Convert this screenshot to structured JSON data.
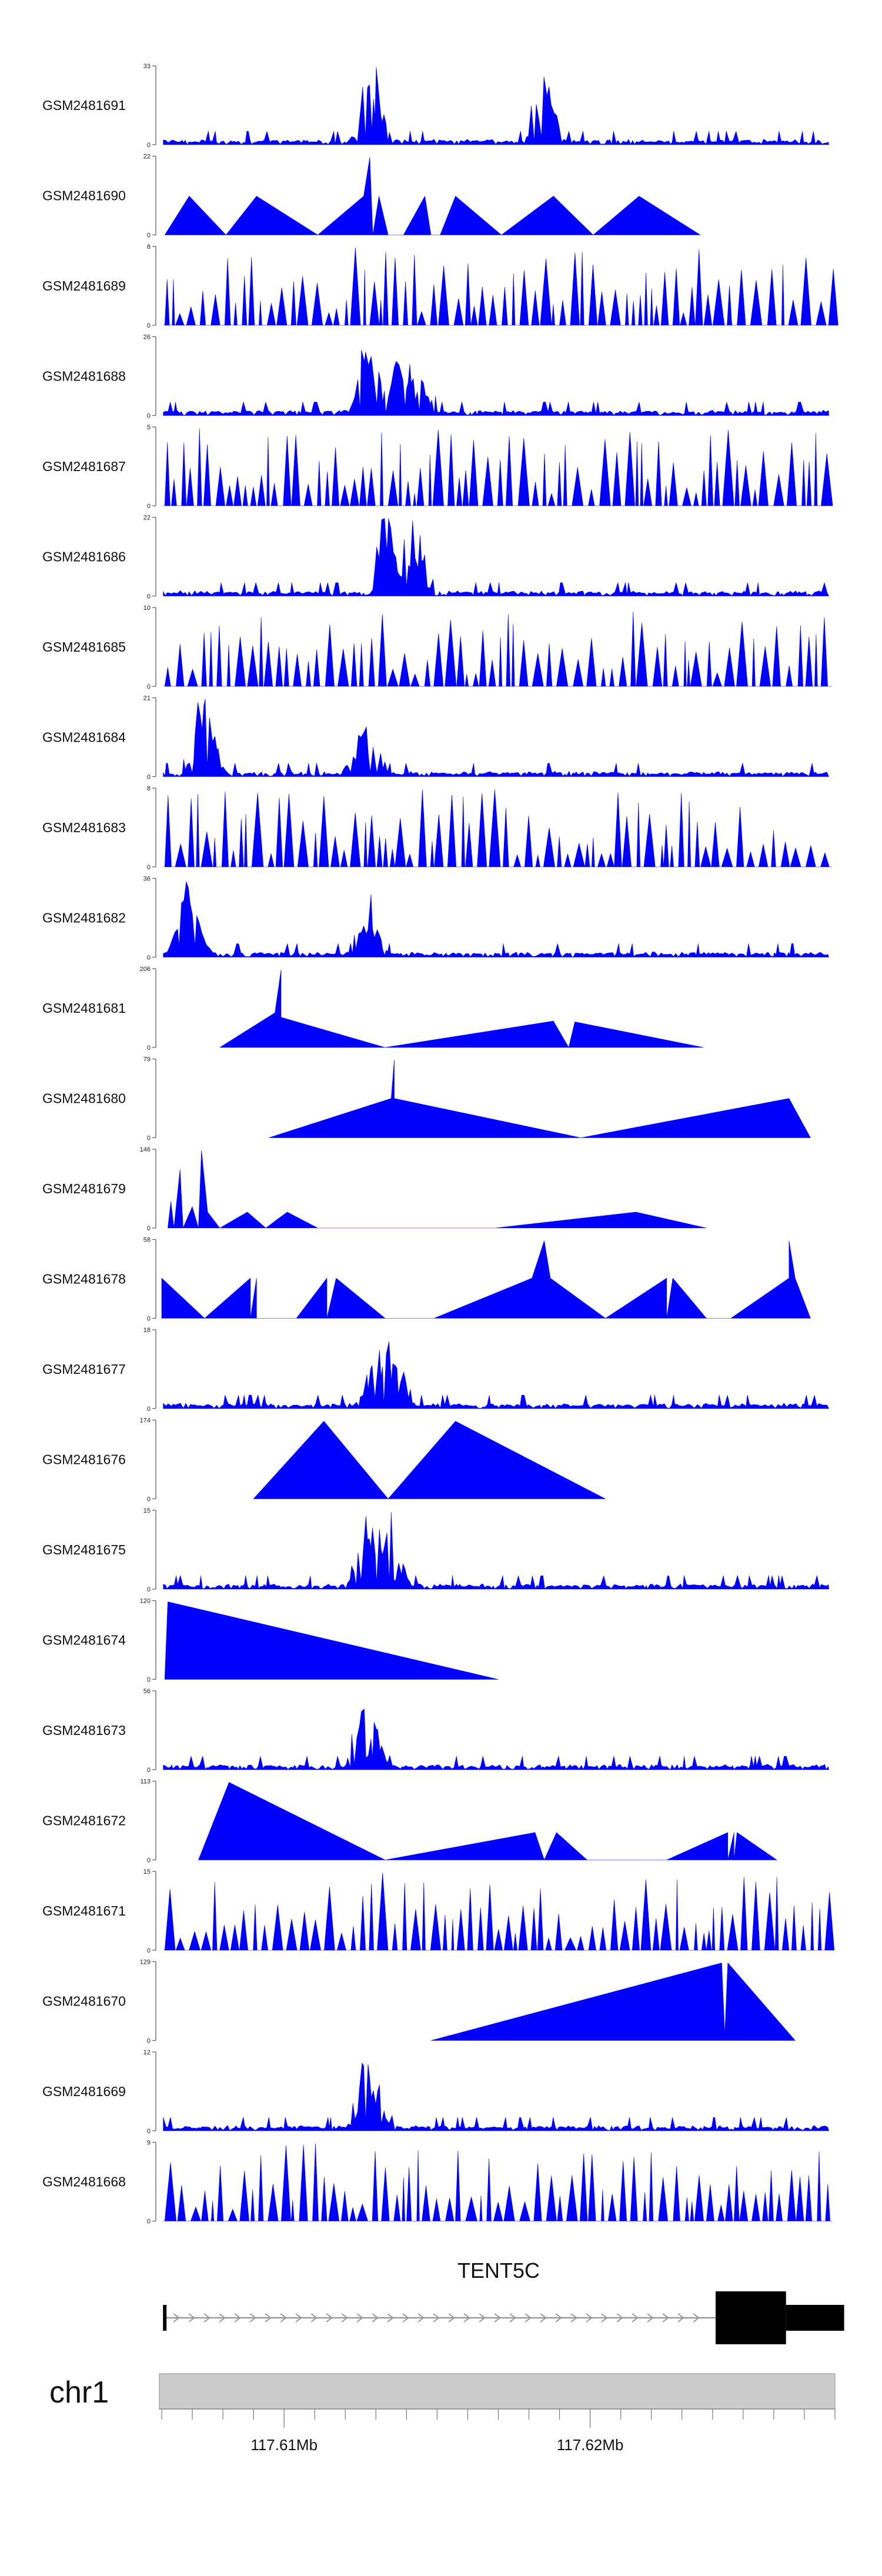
{
  "chart_data": {
    "type": "area",
    "title": "",
    "region": {
      "chrom": "chr1",
      "start": 117.606,
      "end": 117.628,
      "unit": "Mb"
    },
    "x_ticks": [
      {
        "value": 117.61,
        "label": "117.61Mb"
      },
      {
        "value": 117.62,
        "label": "117.62Mb"
      }
    ],
    "color": "#0000ff",
    "tracks": [
      {
        "name": "GSM2481691",
        "ymax": 33,
        "ymin": 0,
        "style": "dense",
        "peaks": [
          [
            117.6129,
            33
          ],
          [
            117.6185,
            29
          ]
        ]
      },
      {
        "name": "GSM2481690",
        "ymax": 22,
        "ymin": 0,
        "style": "sparse",
        "points": [
          [
            117.6061,
            0
          ],
          [
            117.6069,
            11
          ],
          [
            117.6081,
            0
          ],
          [
            117.6091,
            11
          ],
          [
            117.6111,
            0
          ],
          [
            117.6126,
            11
          ],
          [
            117.6128,
            22
          ],
          [
            117.6129,
            0
          ],
          [
            117.6131,
            11
          ],
          [
            117.6134,
            0
          ],
          [
            117.6139,
            0
          ],
          [
            117.6146,
            11
          ],
          [
            117.6148,
            0
          ],
          [
            117.6151,
            0
          ],
          [
            117.6156,
            11
          ],
          [
            117.6171,
            0
          ],
          [
            117.6188,
            11
          ],
          [
            117.6201,
            0
          ],
          [
            117.6216,
            11
          ],
          [
            117.6236,
            0
          ]
        ]
      },
      {
        "name": "GSM2481689",
        "ymax": 8,
        "ymin": 0,
        "style": "spiky"
      },
      {
        "name": "GSM2481688",
        "ymax": 26,
        "ymin": 0,
        "style": "dense",
        "peaks": [
          [
            117.6128,
            26
          ],
          [
            117.6138,
            22
          ],
          [
            117.6144,
            14
          ]
        ]
      },
      {
        "name": "GSM2481687",
        "ymax": 5,
        "ymin": 0,
        "style": "spiky"
      },
      {
        "name": "GSM2481686",
        "ymax": 22,
        "ymin": 0,
        "style": "dense",
        "peaks": [
          [
            117.6134,
            22
          ],
          [
            117.6142,
            18
          ]
        ]
      },
      {
        "name": "GSM2481685",
        "ymax": 10,
        "ymin": 0,
        "style": "spiky"
      },
      {
        "name": "GSM2481684",
        "ymax": 21,
        "ymin": 0,
        "style": "dense",
        "peaks": [
          [
            117.6074,
            21
          ],
          [
            117.6126,
            16
          ]
        ]
      },
      {
        "name": "GSM2481683",
        "ymax": 8,
        "ymin": 0,
        "style": "spiky"
      },
      {
        "name": "GSM2481682",
        "ymax": 36,
        "ymin": 0,
        "style": "dense",
        "peaks": [
          [
            117.6069,
            36
          ],
          [
            117.6127,
            25
          ]
        ]
      },
      {
        "name": "GSM2481681",
        "ymax": 206,
        "ymin": 0,
        "style": "sparse",
        "points": [
          [
            117.6079,
            0
          ],
          [
            117.6097,
            92
          ],
          [
            117.6099,
            206
          ],
          [
            117.6099,
            80
          ],
          [
            117.6133,
            0
          ],
          [
            117.6188,
            70
          ],
          [
            117.6193,
            0
          ],
          [
            117.6195,
            68
          ],
          [
            117.6237,
            0
          ]
        ]
      },
      {
        "name": "GSM2481680",
        "ymax": 79,
        "ymin": 0,
        "style": "sparse",
        "points": [
          [
            117.6095,
            0
          ],
          [
            117.6135,
            40
          ],
          [
            117.6136,
            79
          ],
          [
            117.6136,
            40
          ],
          [
            117.6197,
            0
          ],
          [
            117.6265,
            40
          ],
          [
            117.6272,
            0
          ]
        ]
      },
      {
        "name": "GSM2481679",
        "ymax": 146,
        "ymin": 0,
        "style": "sparse",
        "points": [
          [
            117.6062,
            0
          ],
          [
            117.6063,
            50
          ],
          [
            117.6064,
            0
          ],
          [
            117.6066,
            110
          ],
          [
            117.6067,
            0
          ],
          [
            117.607,
            40
          ],
          [
            117.6072,
            0
          ],
          [
            117.6073,
            146
          ],
          [
            117.6075,
            30
          ],
          [
            117.6079,
            0
          ],
          [
            117.6088,
            30
          ],
          [
            117.6094,
            0
          ],
          [
            117.6101,
            30
          ],
          [
            117.6111,
            0
          ],
          [
            117.6169,
            0
          ],
          [
            117.6215,
            30
          ],
          [
            117.6238,
            0
          ]
        ]
      },
      {
        "name": "GSM2481678",
        "ymax": 58,
        "ymin": 0,
        "style": "sparse",
        "points": [
          [
            117.606,
            0
          ],
          [
            117.606,
            30
          ],
          [
            117.6074,
            0
          ],
          [
            117.6089,
            30
          ],
          [
            117.6089,
            0
          ],
          [
            117.6091,
            30
          ],
          [
            117.6091,
            0
          ],
          [
            117.6104,
            0
          ],
          [
            117.6114,
            30
          ],
          [
            117.6114,
            0
          ],
          [
            117.6117,
            30
          ],
          [
            117.6133,
            0
          ],
          [
            117.6149,
            0
          ],
          [
            117.6181,
            30
          ],
          [
            117.6185,
            58
          ],
          [
            117.6187,
            30
          ],
          [
            117.6205,
            0
          ],
          [
            117.6225,
            30
          ],
          [
            117.6225,
            0
          ],
          [
            117.6227,
            30
          ],
          [
            117.6238,
            0
          ],
          [
            117.6246,
            0
          ],
          [
            117.6265,
            30
          ],
          [
            117.6265,
            58
          ],
          [
            117.6267,
            30
          ],
          [
            117.6272,
            0
          ]
        ]
      },
      {
        "name": "GSM2481677",
        "ymax": 18,
        "ymin": 0,
        "style": "dense",
        "peaks": [
          [
            117.613,
            14
          ],
          [
            117.6136,
            18
          ]
        ]
      },
      {
        "name": "GSM2481676",
        "ymax": 174,
        "ymin": 0,
        "style": "sparse",
        "points": [
          [
            117.609,
            0
          ],
          [
            117.6113,
            174
          ],
          [
            117.6134,
            0
          ],
          [
            117.6156,
            174
          ],
          [
            117.6205,
            0
          ]
        ]
      },
      {
        "name": "GSM2481675",
        "ymax": 15,
        "ymin": 0,
        "style": "dense",
        "peaks": [
          [
            117.6128,
            15
          ],
          [
            117.6135,
            12
          ]
        ]
      },
      {
        "name": "GSM2481674",
        "ymax": 120,
        "ymin": 0,
        "style": "sparse",
        "points": [
          [
            117.6061,
            0
          ],
          [
            117.6062,
            120
          ],
          [
            117.617,
            0
          ]
        ]
      },
      {
        "name": "GSM2481673",
        "ymax": 56,
        "ymin": 0,
        "style": "dense",
        "peaks": [
          [
            117.6127,
            56
          ]
        ]
      },
      {
        "name": "GSM2481672",
        "ymax": 113,
        "ymin": 0,
        "style": "sparse",
        "points": [
          [
            117.6072,
            0
          ],
          [
            117.6082,
            113
          ],
          [
            117.6133,
            0
          ],
          [
            117.6182,
            40
          ],
          [
            117.6185,
            0
          ],
          [
            117.6189,
            40
          ],
          [
            117.6199,
            0
          ],
          [
            117.6225,
            0
          ],
          [
            117.6245,
            40
          ],
          [
            117.6245,
            0
          ],
          [
            117.6247,
            40
          ],
          [
            117.6247,
            0
          ],
          [
            117.6248,
            40
          ],
          [
            117.6261,
            0
          ]
        ]
      },
      {
        "name": "GSM2481671",
        "ymax": 15,
        "ymin": 0,
        "style": "spiky"
      },
      {
        "name": "GSM2481670",
        "ymax": 129,
        "ymin": 0,
        "style": "sparse",
        "points": [
          [
            117.6148,
            0
          ],
          [
            117.6243,
            129
          ],
          [
            117.6244,
            10
          ],
          [
            117.6245,
            129
          ],
          [
            117.6267,
            0
          ]
        ]
      },
      {
        "name": "GSM2481669",
        "ymax": 12,
        "ymin": 0,
        "style": "dense",
        "peaks": [
          [
            117.6128,
            12
          ]
        ]
      },
      {
        "name": "GSM2481668",
        "ymax": 9,
        "ymin": 0,
        "style": "spiky"
      }
    ],
    "gene": {
      "name": "TENT5C",
      "strand": "+",
      "tx_start": 117.6061,
      "cds_start": 117.6241,
      "cds_end": 117.6264,
      "tx_end": 117.6283
    },
    "ideogram": {
      "label": "chr1"
    }
  }
}
